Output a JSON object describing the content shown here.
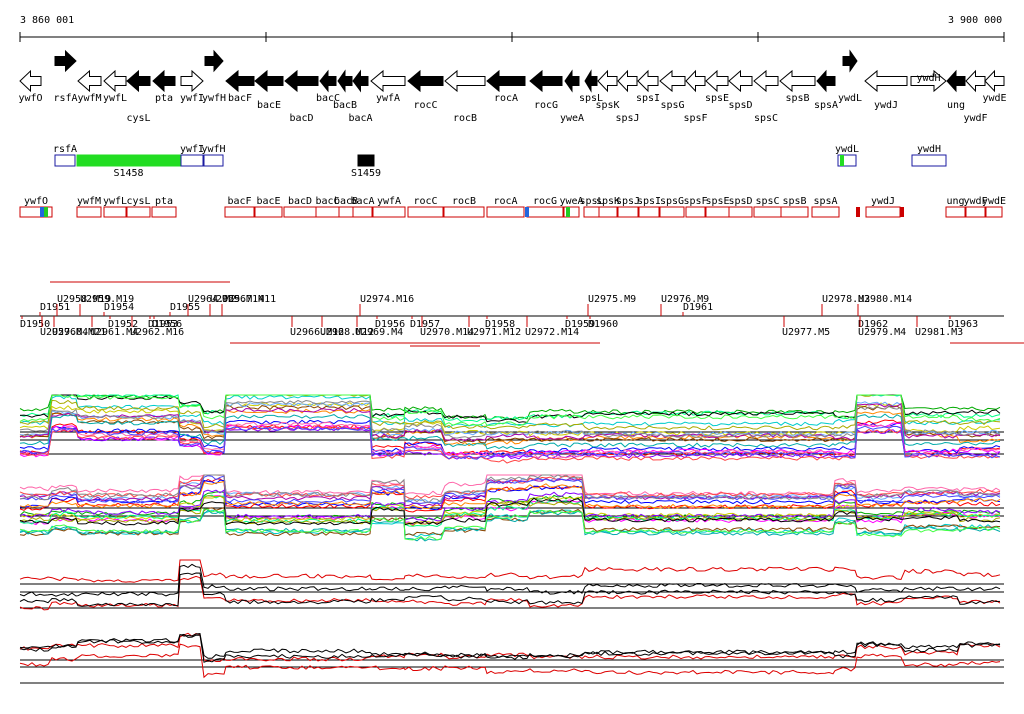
{
  "ruler": {
    "start_label": "3 860 001",
    "end_label": "3 900 000"
  },
  "colors": {
    "filled_gene": "#000000",
    "outline": "#000000",
    "region": "#1a1aa0",
    "region_fill_green": "#22dd22",
    "operon": "#cc0000",
    "trace_red": "#dd0000",
    "trace_black": "#000000"
  },
  "genes": [
    {
      "label": "ywfO",
      "filled": false,
      "dir": "L",
      "pos": "bottom"
    },
    {
      "label": "rsfA",
      "filled": true,
      "dir": "R",
      "pos": "bottom"
    },
    {
      "label": "ywfM",
      "filled": false,
      "dir": "L",
      "pos": "bottom"
    },
    {
      "label": "ywfL",
      "filled": false,
      "dir": "L",
      "pos": "bottom"
    },
    {
      "label": "cysL",
      "filled": true,
      "dir": "L",
      "pos": "low"
    },
    {
      "label": "pta",
      "filled": true,
      "dir": "L",
      "pos": "bottom"
    },
    {
      "label": "ywfI",
      "filled": false,
      "dir": "R",
      "pos": "bottom"
    },
    {
      "label": "ywfH",
      "filled": true,
      "dir": "R",
      "pos": "bottom"
    },
    {
      "label": "bacF",
      "filled": true,
      "dir": "L",
      "pos": "bottom"
    },
    {
      "label": "bacE",
      "filled": true,
      "dir": "L",
      "pos": "mid"
    },
    {
      "label": "bacD",
      "filled": true,
      "dir": "L",
      "pos": "low"
    },
    {
      "label": "bacC",
      "filled": true,
      "dir": "L",
      "pos": "bottom"
    },
    {
      "label": "bacB",
      "filled": true,
      "dir": "L",
      "pos": "mid"
    },
    {
      "label": "bacA",
      "filled": true,
      "dir": "L",
      "pos": "low"
    },
    {
      "label": "ywfA",
      "filled": false,
      "dir": "L",
      "pos": "bottom"
    },
    {
      "label": "rocC",
      "filled": true,
      "dir": "L",
      "pos": "mid"
    },
    {
      "label": "rocB",
      "filled": false,
      "dir": "L",
      "pos": "low"
    },
    {
      "label": "rocA",
      "filled": true,
      "dir": "L",
      "pos": "bottom"
    },
    {
      "label": "rocG",
      "filled": true,
      "dir": "L",
      "pos": "mid"
    },
    {
      "label": "yweA",
      "filled": true,
      "dir": "L",
      "pos": "low"
    },
    {
      "label": "spsL",
      "filled": true,
      "dir": "L",
      "pos": "bottom"
    },
    {
      "label": "spsK",
      "filled": false,
      "dir": "L",
      "pos": "mid"
    },
    {
      "label": "spsJ",
      "filled": false,
      "dir": "L",
      "pos": "low"
    },
    {
      "label": "spsI",
      "filled": false,
      "dir": "L",
      "pos": "bottom"
    },
    {
      "label": "spsG",
      "filled": false,
      "dir": "L",
      "pos": "mid"
    },
    {
      "label": "spsF",
      "filled": false,
      "dir": "L",
      "pos": "low"
    },
    {
      "label": "spsE",
      "filled": false,
      "dir": "L",
      "pos": "bottom"
    },
    {
      "label": "spsD",
      "filled": false,
      "dir": "L",
      "pos": "mid"
    },
    {
      "label": "spsC",
      "filled": false,
      "dir": "L",
      "pos": "low"
    },
    {
      "label": "spsB",
      "filled": false,
      "dir": "L",
      "pos": "bottom"
    },
    {
      "label": "spsA",
      "filled": true,
      "dir": "L",
      "pos": "mid"
    },
    {
      "label": "ywdL",
      "filled": true,
      "dir": "R",
      "pos": "bottom"
    },
    {
      "label": "ywdJ",
      "filled": false,
      "dir": "L",
      "pos": "mid"
    },
    {
      "label": "ywdH",
      "filled": false,
      "dir": "R",
      "pos": "inside"
    },
    {
      "label": "ung",
      "filled": true,
      "dir": "L",
      "pos": "mid"
    },
    {
      "label": "ywdF",
      "filled": false,
      "dir": "L",
      "pos": "low"
    },
    {
      "label": "ywdE",
      "filled": false,
      "dir": "L",
      "pos": "bottom"
    }
  ],
  "regions": [
    {
      "label": "rsfA",
      "style": "outline"
    },
    {
      "label": "S1458",
      "style": "green"
    },
    {
      "label": "ywfI",
      "style": "outline"
    },
    {
      "label": "ywfH",
      "style": "outline"
    },
    {
      "label": "S1459",
      "style": "black"
    },
    {
      "label": "ywdL",
      "style": "outline"
    },
    {
      "label": "ywdH",
      "style": "outline"
    }
  ],
  "operons": [
    "ywfO",
    "ywfM",
    "ywfL",
    "cysL",
    "pta",
    "bacF",
    "bacE",
    "bacD",
    "bacC",
    "bacB",
    "bacA",
    "ywfA",
    "rocC",
    "rocB",
    "rocA",
    "rocG",
    "yweA",
    "spsL",
    "spsK",
    "spsJ",
    "spsI",
    "spsG",
    "spsF",
    "spsE",
    "spsD",
    "spsC",
    "spsB",
    "spsA",
    "ywdJ",
    "ung",
    "ywdF",
    "ywdE"
  ],
  "upper_markers": [
    "D1951",
    "U2958.M19",
    "U2959.M19",
    "D1954",
    "D1955",
    "U2964.M2",
    "U2965.M14",
    "U2967.M11",
    "U2974.M16",
    "U2975.M9",
    "U2976.M9",
    "D1961",
    "U2978.M3",
    "U2980.M14"
  ],
  "lower_markers": [
    "D1950",
    "U2957.M4",
    "U2960.M21",
    "D1952",
    "U2961.M4",
    "D1953",
    "U2962.M16",
    "D1956",
    "U2966.M12",
    "U2968.M12",
    "D1956",
    "U2969.M4",
    "D1957",
    "U2970.M14",
    "D1958",
    "U2971.M12",
    "U2972.M14",
    "D1959",
    "D1960",
    "U2977.M5",
    "D1962",
    "U2979.M4",
    "U2981.M3",
    "D1963"
  ]
}
